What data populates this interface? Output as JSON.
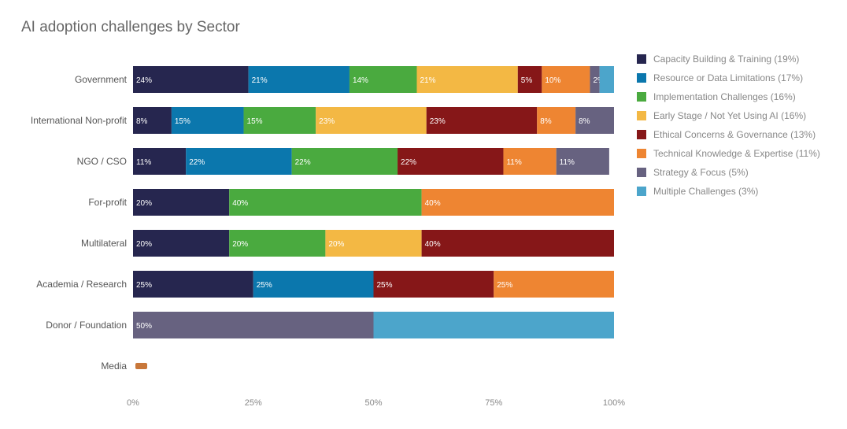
{
  "chart_data": {
    "type": "bar",
    "orientation": "horizontal",
    "stacked": true,
    "title": "AI adoption challenges by Sector",
    "categories": [
      "Government",
      "International Non-profit",
      "NGO / CSO",
      "For-profit",
      "Multilateral",
      "Academia / Research",
      "Donor / Foundation",
      "Media"
    ],
    "series": [
      {
        "name": "Capacity Building & Training (19%)",
        "color": "#26264f",
        "values": [
          24,
          8,
          11,
          20,
          20,
          25,
          0,
          0
        ],
        "labels": [
          "24%",
          "8%",
          "11%",
          "20%",
          "20%",
          "25%",
          "",
          ""
        ]
      },
      {
        "name": "Resource or Data Limitations (17%)",
        "color": "#0b77ad",
        "values": [
          21,
          15,
          22,
          0,
          0,
          25,
          0,
          0
        ],
        "labels": [
          "21%",
          "15%",
          "22%",
          "",
          "",
          "25%",
          "",
          ""
        ]
      },
      {
        "name": "Implementation Challenges (16%)",
        "color": "#4aaa3f",
        "values": [
          14,
          15,
          22,
          40,
          20,
          0,
          0,
          0
        ],
        "labels": [
          "14%",
          "15%",
          "22%",
          "40%",
          "20%",
          "",
          "",
          ""
        ]
      },
      {
        "name": "Early Stage / Not Yet Using AI (16%)",
        "color": "#f3b844",
        "values": [
          21,
          23,
          0,
          0,
          20,
          0,
          0,
          0
        ],
        "labels": [
          "21%",
          "23%",
          "",
          "",
          "20%",
          "",
          "",
          ""
        ]
      },
      {
        "name": "Ethical Concerns & Governance (13%)",
        "color": "#861718",
        "values": [
          5,
          23,
          22,
          0,
          40,
          25,
          0,
          0
        ],
        "labels": [
          "5%",
          "23%",
          "22%",
          "",
          "40%",
          "25%",
          "",
          ""
        ]
      },
      {
        "name": "Technical Knowledge & Expertise (11%)",
        "color": "#ee8532",
        "values": [
          10,
          8,
          11,
          40,
          0,
          25,
          0,
          0
        ],
        "labels": [
          "10%",
          "8%",
          "11%",
          "40%",
          "",
          "25%",
          "",
          ""
        ]
      },
      {
        "name": "Strategy & Focus (5%)",
        "color": "#676280",
        "values": [
          2,
          8,
          11,
          0,
          0,
          0,
          50,
          0
        ],
        "labels": [
          "2%",
          "8%",
          "11%",
          "",
          "",
          "",
          "50%",
          ""
        ]
      },
      {
        "name": "Multiple Challenges (3%)",
        "color": "#4ca5cb",
        "values": [
          3,
          0,
          0,
          0,
          0,
          0,
          50,
          0
        ],
        "labels": [
          "",
          "",
          "",
          "",
          "",
          "",
          "",
          ""
        ]
      }
    ],
    "x_ticks": [
      "0%",
      "25%",
      "50%",
      "75%",
      "100%"
    ],
    "xlim": [
      0,
      100
    ],
    "xlabel": "",
    "ylabel": "",
    "grid": false,
    "legend_position": "right",
    "media_marker_color": "#c8773a"
  }
}
